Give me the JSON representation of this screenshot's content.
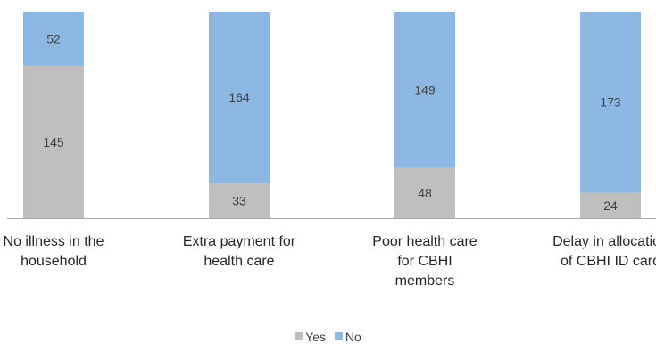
{
  "chart_data": {
    "type": "bar",
    "stacked": true,
    "categories": [
      "No illness in the household",
      "Extra payment for health care",
      "Poor health care for CBHI members",
      "Delay in allocation of CBHI ID card"
    ],
    "series": [
      {
        "name": "Yes",
        "color": "#bfbfbf",
        "values": [
          145,
          33,
          48,
          24
        ]
      },
      {
        "name": "No",
        "color": "#8db8e3",
        "values": [
          52,
          164,
          149,
          173
        ]
      }
    ],
    "data_labels": true,
    "ylim": [
      0,
      197
    ],
    "grid": false,
    "legend_position": "bottom"
  }
}
